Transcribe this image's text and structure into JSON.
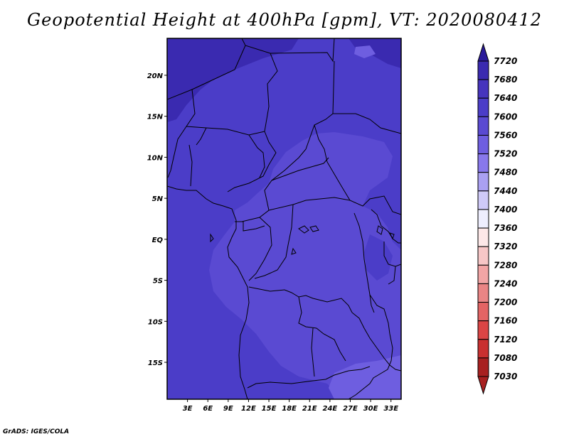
{
  "title": "Geopotential Height at 400hPa [gpm], VT: 2020080412",
  "credit": "GrADS: IGES/COLA",
  "map": {
    "lon_range": [
      0,
      34.5
    ],
    "lat_range": [
      -19.5,
      24.5
    ],
    "lat_ticks": [
      {
        "value": 20,
        "label": "20N"
      },
      {
        "value": 15,
        "label": "15N"
      },
      {
        "value": 10,
        "label": "10N"
      },
      {
        "value": 5,
        "label": "5N"
      },
      {
        "value": 0,
        "label": "EQ"
      },
      {
        "value": -5,
        "label": "5S"
      },
      {
        "value": -10,
        "label": "10S"
      },
      {
        "value": -15,
        "label": "15S"
      }
    ],
    "lon_ticks": [
      {
        "value": 3,
        "label": "3E"
      },
      {
        "value": 6,
        "label": "6E"
      },
      {
        "value": 9,
        "label": "9E"
      },
      {
        "value": 12,
        "label": "12E"
      },
      {
        "value": 15,
        "label": "15E"
      },
      {
        "value": 18,
        "label": "18E"
      },
      {
        "value": 21,
        "label": "21E"
      },
      {
        "value": 24,
        "label": "24E"
      },
      {
        "value": 27,
        "label": "27E"
      },
      {
        "value": 30,
        "label": "30E"
      },
      {
        "value": 33,
        "label": "33E"
      }
    ]
  },
  "colorbar": {
    "levels": [
      "7720",
      "7680",
      "7640",
      "7600",
      "7560",
      "7520",
      "7480",
      "7440",
      "7400",
      "7360",
      "7320",
      "7280",
      "7240",
      "7200",
      "7160",
      "7120",
      "7080",
      "7030"
    ],
    "colors": [
      "#2a1a9a",
      "#3a2ab0",
      "#4634bd",
      "#4b3dc8",
      "#5a4ad2",
      "#6e5ee0",
      "#8878ec",
      "#aaa0f2",
      "#cfcaf8",
      "#eeeefe",
      "#fde8e8",
      "#f7c7c7",
      "#f2a5a5",
      "#ea8585",
      "#e36464",
      "#db4545",
      "#c93030",
      "#a82020"
    ]
  }
}
